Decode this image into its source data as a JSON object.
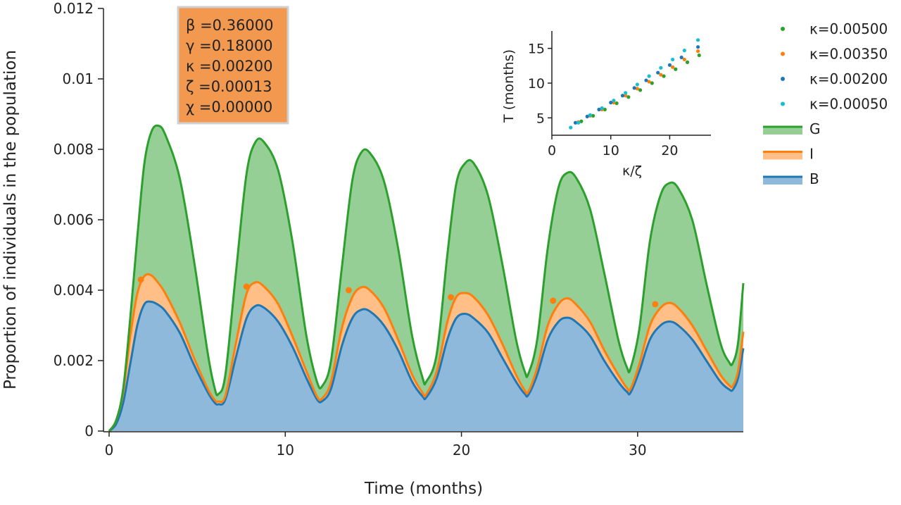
{
  "chart_data": {
    "type": "area",
    "title": "",
    "xlabel": "Time (months)",
    "ylabel": "Proportion of individuals in the population",
    "xlim": [
      0,
      36
    ],
    "ylim": [
      0,
      0.012
    ],
    "x_ticks": [
      0,
      10,
      20,
      30
    ],
    "x_tick_labels": [
      "0",
      "10",
      "20",
      "30"
    ],
    "y_ticks": [
      0,
      0.002,
      0.004,
      0.006,
      0.008,
      0.01,
      0.012
    ],
    "y_tick_labels": [
      "0",
      "0.002",
      "0.004",
      "0.006",
      "0.008",
      "0.01",
      "0.012"
    ],
    "grid": false,
    "stacked": true,
    "series": [
      {
        "name": "B",
        "color": "#1f77b4",
        "fill": "#8fb9da",
        "x": [
          0,
          0.4,
          0.8,
          1.2,
          1.6,
          2.0,
          2.4,
          2.8,
          3.2,
          4.0,
          4.8,
          5.6,
          6.0,
          6.2,
          6.6,
          7.2,
          7.8,
          8.3,
          8.8,
          9.6,
          10.4,
          11.2,
          11.8,
          12.1,
          12.6,
          13.2,
          13.8,
          14.3,
          14.8,
          15.6,
          16.4,
          17.2,
          17.8,
          18.0,
          18.6,
          19.2,
          19.7,
          20.2,
          20.7,
          21.5,
          22.3,
          23.1,
          23.6,
          23.8,
          24.3,
          24.9,
          25.5,
          26.0,
          26.5,
          27.3,
          28.1,
          28.9,
          29.4,
          29.6,
          30.1,
          30.7,
          31.3,
          31.8,
          32.3,
          33.1,
          33.9,
          34.7,
          35.2,
          35.4,
          35.7,
          36.0
        ],
        "y": [
          0,
          0.0002,
          0.0008,
          0.0019,
          0.003,
          0.0036,
          0.00367,
          0.00358,
          0.0034,
          0.0028,
          0.0019,
          0.0011,
          0.0008,
          0.00076,
          0.0009,
          0.0021,
          0.0032,
          0.00355,
          0.0035,
          0.0031,
          0.0024,
          0.0015,
          0.0009,
          0.00085,
          0.0012,
          0.0024,
          0.0032,
          0.00344,
          0.0034,
          0.003,
          0.0023,
          0.0014,
          0.00098,
          0.00095,
          0.0015,
          0.0026,
          0.0032,
          0.00333,
          0.0032,
          0.0028,
          0.0021,
          0.0014,
          0.00105,
          0.00103,
          0.0016,
          0.0026,
          0.0031,
          0.00322,
          0.0031,
          0.0027,
          0.002,
          0.0014,
          0.00111,
          0.00109,
          0.0017,
          0.0026,
          0.003,
          0.00311,
          0.003,
          0.0026,
          0.002,
          0.0014,
          0.00118,
          0.00117,
          0.0015,
          0.00235
        ]
      },
      {
        "name": "I",
        "color": "#ff7f0e",
        "fill": "#ffbf87",
        "x": [
          0,
          0.4,
          0.8,
          1.2,
          1.6,
          2.0,
          2.4,
          2.8,
          3.2,
          4.0,
          4.8,
          5.6,
          6.0,
          6.2,
          6.6,
          7.2,
          7.8,
          8.3,
          8.8,
          9.6,
          10.4,
          11.2,
          11.8,
          12.1,
          12.6,
          13.2,
          13.8,
          14.3,
          14.8,
          15.6,
          16.4,
          17.2,
          17.8,
          18.0,
          18.6,
          19.2,
          19.7,
          20.2,
          20.7,
          21.5,
          22.3,
          23.1,
          23.6,
          23.8,
          24.3,
          24.9,
          25.5,
          26.0,
          26.5,
          27.3,
          28.1,
          28.9,
          29.4,
          29.6,
          30.1,
          30.7,
          31.3,
          31.8,
          32.3,
          33.1,
          33.9,
          34.7,
          35.2,
          35.4,
          35.7,
          36.0
        ],
        "y": [
          0,
          0.0003,
          0.0011,
          0.0027,
          0.0039,
          0.0044,
          0.00442,
          0.0042,
          0.0039,
          0.0031,
          0.0021,
          0.0012,
          0.00088,
          0.00084,
          0.001,
          0.0025,
          0.0039,
          0.00422,
          0.0041,
          0.0036,
          0.0027,
          0.0017,
          0.00098,
          0.00093,
          0.0014,
          0.0029,
          0.0038,
          0.00408,
          0.004,
          0.0035,
          0.0026,
          0.0016,
          0.00108,
          0.00104,
          0.0017,
          0.0031,
          0.0038,
          0.00392,
          0.0038,
          0.0033,
          0.0025,
          0.0016,
          0.00115,
          0.00112,
          0.0018,
          0.003,
          0.0036,
          0.00377,
          0.0036,
          0.0031,
          0.0023,
          0.0016,
          0.00122,
          0.0012,
          0.0019,
          0.003,
          0.0035,
          0.00364,
          0.0035,
          0.003,
          0.0023,
          0.0016,
          0.0013,
          0.00128,
          0.0017,
          0.00282
        ]
      },
      {
        "name": "G",
        "color": "#2ca02c",
        "fill": "#95cf95",
        "x": [
          0,
          0.4,
          0.8,
          1.2,
          1.6,
          2.0,
          2.4,
          2.8,
          3.2,
          4.0,
          4.8,
          5.6,
          6.0,
          6.2,
          6.6,
          7.2,
          7.8,
          8.3,
          8.8,
          9.6,
          10.4,
          11.2,
          11.8,
          12.1,
          12.6,
          13.2,
          13.8,
          14.3,
          14.8,
          15.6,
          16.4,
          17.2,
          17.8,
          18.0,
          18.6,
          19.2,
          19.7,
          20.2,
          20.7,
          21.5,
          22.3,
          23.1,
          23.6,
          23.8,
          24.3,
          24.9,
          25.5,
          26.0,
          26.5,
          27.3,
          28.1,
          28.9,
          29.4,
          29.6,
          30.1,
          30.7,
          31.3,
          31.8,
          32.3,
          33.1,
          33.9,
          34.7,
          35.2,
          35.4,
          35.7,
          36.0
        ],
        "y": [
          0,
          0.0003,
          0.0012,
          0.0032,
          0.0055,
          0.0076,
          0.0085,
          0.00867,
          0.0084,
          0.0072,
          0.0049,
          0.0022,
          0.0012,
          0.00105,
          0.0016,
          0.0045,
          0.0073,
          0.0082,
          0.0082,
          0.0074,
          0.0054,
          0.0027,
          0.0014,
          0.00128,
          0.002,
          0.0046,
          0.0071,
          0.0079,
          0.0079,
          0.0071,
          0.0052,
          0.0027,
          0.0015,
          0.0014,
          0.0022,
          0.005,
          0.007,
          0.0076,
          0.0076,
          0.0067,
          0.0048,
          0.0026,
          0.00168,
          0.00163,
          0.0026,
          0.0052,
          0.0069,
          0.00733,
          0.0072,
          0.0063,
          0.0045,
          0.0026,
          0.0018,
          0.00178,
          0.0029,
          0.0054,
          0.0067,
          0.00704,
          0.0069,
          0.006,
          0.0042,
          0.0025,
          0.00195,
          0.00193,
          0.0025,
          0.0042
        ]
      }
    ],
    "peak_markers": {
      "color": "#ff7f0e",
      "x": [
        1.8,
        7.8,
        13.6,
        19.4,
        25.2,
        31.0
      ],
      "y": [
        0.0043,
        0.0041,
        0.004,
        0.0038,
        0.0037,
        0.0036
      ]
    },
    "legend": {
      "placement": "right",
      "entries": [
        {
          "label": "κ=0.00500",
          "kind": "marker",
          "color": "#2ca02c"
        },
        {
          "label": "κ=0.00350",
          "kind": "marker",
          "color": "#ff7f0e"
        },
        {
          "label": "κ=0.00200",
          "kind": "marker",
          "color": "#1f77b4"
        },
        {
          "label": "κ=0.00050",
          "kind": "marker",
          "color": "#17becf"
        },
        {
          "label": "G",
          "kind": "area",
          "color": "#2ca02c",
          "fill": "#95cf95"
        },
        {
          "label": "I",
          "kind": "area",
          "color": "#ff7f0e",
          "fill": "#ffbf87"
        },
        {
          "label": "B",
          "kind": "area",
          "color": "#1f77b4",
          "fill": "#8fb9da"
        }
      ]
    },
    "parameter_box": {
      "background": "#f2994f",
      "lines": [
        "β =0.36000",
        "γ =0.18000",
        "κ =0.00200",
        "ζ =0.00013",
        "χ =0.00000"
      ]
    },
    "inset": {
      "type": "scatter",
      "xlabel": "κ/ζ",
      "ylabel": "T (months)",
      "xlim": [
        0,
        27
      ],
      "ylim": [
        2.5,
        17.5
      ],
      "x_ticks": [
        0,
        10,
        20
      ],
      "x_tick_labels": [
        "0",
        "10",
        "20"
      ],
      "y_ticks": [
        5,
        10,
        15
      ],
      "y_tick_labels": [
        "5",
        "10",
        "15"
      ],
      "series": [
        {
          "name": "κ=0.00500",
          "color": "#2ca02c",
          "x": [
            5,
            7,
            9,
            11,
            13,
            15,
            17,
            19,
            21,
            23,
            25
          ],
          "y": [
            4.5,
            5.3,
            6.2,
            7.1,
            8.0,
            9.0,
            10.0,
            11.0,
            12.0,
            13.0,
            14.0
          ]
        },
        {
          "name": "κ=0.00350",
          "color": "#ff7f0e",
          "x": [
            4.5,
            6.5,
            8.5,
            10.5,
            12.5,
            14.5,
            16.5,
            18.5,
            20.5,
            22.5,
            24.8
          ],
          "y": [
            4.4,
            5.3,
            6.2,
            7.2,
            8.2,
            9.2,
            10.2,
            11.2,
            12.3,
            13.4,
            14.6
          ]
        },
        {
          "name": "κ=0.00200",
          "color": "#1f77b4",
          "x": [
            4,
            6,
            8,
            10,
            12,
            14,
            16,
            18,
            20,
            22,
            24.8
          ],
          "y": [
            4.3,
            5.2,
            6.2,
            7.2,
            8.2,
            9.3,
            10.4,
            11.5,
            12.6,
            13.7,
            15.2
          ]
        },
        {
          "name": "κ=0.00050",
          "color": "#17becf",
          "x": [
            3.2,
            4.5,
            6.5,
            8.5,
            10.5,
            12.5,
            14.5,
            16.5,
            18.5,
            20.5,
            22.5,
            24.8
          ],
          "y": [
            3.6,
            4.3,
            5.4,
            6.4,
            7.5,
            8.6,
            9.8,
            11.0,
            12.2,
            13.4,
            14.7,
            16.2
          ]
        }
      ]
    }
  }
}
